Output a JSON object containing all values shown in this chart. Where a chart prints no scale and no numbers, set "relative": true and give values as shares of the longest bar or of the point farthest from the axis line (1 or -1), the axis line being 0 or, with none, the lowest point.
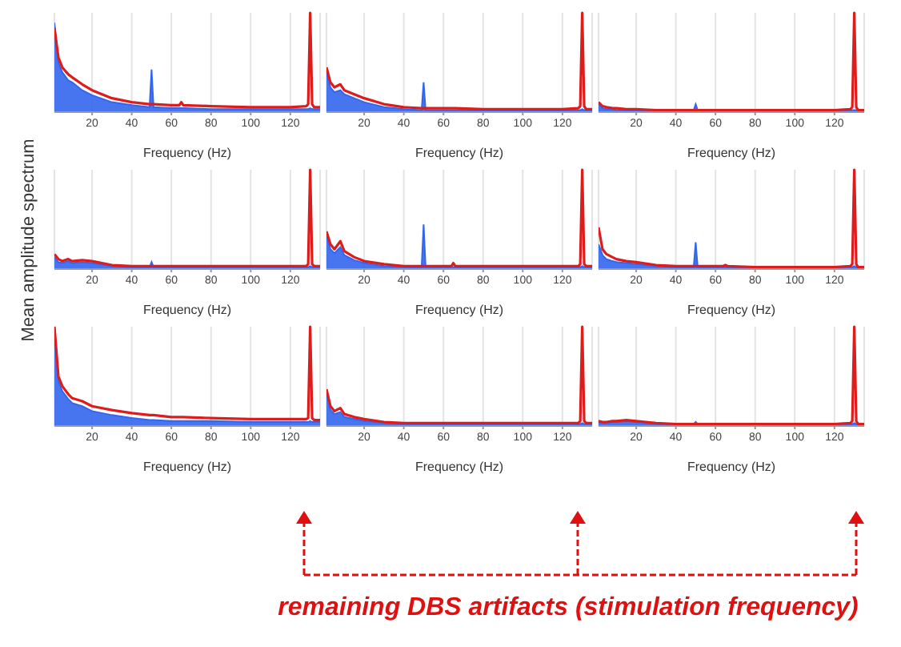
{
  "chart_data": [
    {
      "type": "line",
      "relative": true,
      "xlabel": "Frequency (Hz)",
      "xlim": [
        1,
        135
      ],
      "xticks": [
        20,
        40,
        60,
        80,
        100,
        120
      ],
      "grid": "x",
      "marker": "none",
      "x": [
        1,
        3,
        5,
        8,
        10,
        15,
        20,
        30,
        40,
        49,
        50,
        51,
        60,
        64,
        65,
        66,
        80,
        100,
        120,
        128,
        129,
        130,
        131,
        132,
        135
      ],
      "series": [
        {
          "type": "area",
          "color": "#3366ee",
          "values": [
            0.9,
            0.5,
            0.4,
            0.32,
            0.3,
            0.22,
            0.17,
            0.1,
            0.07,
            0.05,
            0.43,
            0.05,
            0.04,
            0.04,
            0.04,
            0.04,
            0.03,
            0.03,
            0.03,
            0.03,
            0.03,
            0.04,
            0.03,
            0.03,
            0.03
          ]
        },
        {
          "type": "line",
          "color": "#dd1c1c",
          "values": [
            0.85,
            0.55,
            0.45,
            0.38,
            0.35,
            0.28,
            0.22,
            0.14,
            0.1,
            0.08,
            0.08,
            0.08,
            0.07,
            0.07,
            0.1,
            0.07,
            0.06,
            0.05,
            0.05,
            0.06,
            0.08,
            1,
            0.08,
            0.05,
            0.05
          ]
        }
      ]
    },
    {
      "type": "line",
      "relative": true,
      "xlabel": "Frequency (Hz)",
      "xlim": [
        1,
        135
      ],
      "xticks": [
        20,
        40,
        60,
        80,
        100,
        120
      ],
      "grid": "x",
      "marker": "none",
      "x": [
        1,
        3,
        5,
        8,
        10,
        15,
        20,
        30,
        40,
        49,
        50,
        51,
        60,
        64,
        65,
        66,
        80,
        100,
        120,
        128,
        129,
        130,
        131,
        132,
        135
      ],
      "series": [
        {
          "type": "area",
          "color": "#3366ee",
          "values": [
            0.4,
            0.25,
            0.2,
            0.22,
            0.18,
            0.14,
            0.1,
            0.05,
            0.03,
            0.02,
            0.3,
            0.02,
            0.02,
            0.02,
            0.02,
            0.02,
            0.02,
            0.02,
            0.02,
            0.02,
            0.02,
            0.03,
            0.02,
            0.02,
            0.02
          ]
        },
        {
          "type": "line",
          "color": "#dd1c1c",
          "values": [
            0.45,
            0.3,
            0.25,
            0.28,
            0.22,
            0.18,
            0.14,
            0.08,
            0.05,
            0.04,
            0.04,
            0.04,
            0.04,
            0.04,
            0.04,
            0.04,
            0.03,
            0.03,
            0.03,
            0.04,
            0.06,
            1,
            0.06,
            0.03,
            0.03
          ]
        }
      ]
    },
    {
      "type": "line",
      "relative": true,
      "xlabel": "Frequency (Hz)",
      "xlim": [
        1,
        135
      ],
      "xticks": [
        20,
        40,
        60,
        80,
        100,
        120
      ],
      "grid": "x",
      "marker": "none",
      "x": [
        1,
        3,
        5,
        8,
        10,
        15,
        20,
        30,
        40,
        49,
        50,
        51,
        60,
        64,
        65,
        66,
        80,
        100,
        120,
        128,
        129,
        130,
        131,
        132,
        135
      ],
      "series": [
        {
          "type": "area",
          "color": "#3366ee",
          "values": [
            0.08,
            0.04,
            0.03,
            0.03,
            0.02,
            0.02,
            0.02,
            0.02,
            0.02,
            0.02,
            0.08,
            0.02,
            0.02,
            0.02,
            0.02,
            0.02,
            0.02,
            0.02,
            0.02,
            0.02,
            0.02,
            0.02,
            0.02,
            0.02,
            0.02
          ]
        },
        {
          "type": "line",
          "color": "#dd1c1c",
          "values": [
            0.1,
            0.06,
            0.05,
            0.04,
            0.04,
            0.03,
            0.03,
            0.02,
            0.02,
            0.02,
            0.02,
            0.02,
            0.02,
            0.02,
            0.02,
            0.02,
            0.02,
            0.02,
            0.02,
            0.03,
            0.05,
            1,
            0.05,
            0.02,
            0.02
          ]
        }
      ]
    },
    {
      "type": "line",
      "relative": true,
      "ylabel": "Mean amplitude spectrum",
      "xlabel": "Frequency (Hz)",
      "xlim": [
        1,
        135
      ],
      "xticks": [
        20,
        40,
        60,
        80,
        100,
        120
      ],
      "grid": "x",
      "marker": "none",
      "x": [
        1,
        3,
        5,
        8,
        10,
        15,
        20,
        30,
        40,
        49,
        50,
        51,
        60,
        64,
        65,
        66,
        80,
        100,
        120,
        128,
        129,
        130,
        131,
        132,
        135
      ],
      "series": [
        {
          "type": "area",
          "color": "#3366ee",
          "values": [
            0.12,
            0.07,
            0.06,
            0.08,
            0.06,
            0.07,
            0.06,
            0.03,
            0.02,
            0.02,
            0.07,
            0.02,
            0.02,
            0.02,
            0.02,
            0.02,
            0.02,
            0.02,
            0.02,
            0.02,
            0.02,
            0.03,
            0.02,
            0.02,
            0.02
          ]
        },
        {
          "type": "line",
          "color": "#dd1c1c",
          "values": [
            0.15,
            0.1,
            0.08,
            0.1,
            0.08,
            0.09,
            0.08,
            0.04,
            0.03,
            0.03,
            0.03,
            0.03,
            0.03,
            0.03,
            0.03,
            0.03,
            0.03,
            0.03,
            0.03,
            0.03,
            0.05,
            1,
            0.05,
            0.03,
            0.03
          ]
        }
      ]
    },
    {
      "type": "line",
      "relative": true,
      "xlabel": "Frequency (Hz)",
      "xlim": [
        1,
        135
      ],
      "xticks": [
        20,
        40,
        60,
        80,
        100,
        120
      ],
      "grid": "x",
      "marker": "none",
      "x": [
        1,
        3,
        5,
        8,
        10,
        15,
        20,
        30,
        40,
        49,
        50,
        51,
        60,
        64,
        65,
        66,
        80,
        100,
        120,
        128,
        129,
        130,
        131,
        132,
        135
      ],
      "series": [
        {
          "type": "area",
          "color": "#3366ee",
          "values": [
            0.33,
            0.2,
            0.16,
            0.22,
            0.14,
            0.09,
            0.06,
            0.03,
            0.02,
            0.02,
            0.45,
            0.02,
            0.02,
            0.02,
            0.02,
            0.02,
            0.02,
            0.02,
            0.02,
            0.02,
            0.02,
            0.03,
            0.02,
            0.02,
            0.02
          ]
        },
        {
          "type": "line",
          "color": "#dd1c1c",
          "values": [
            0.38,
            0.25,
            0.2,
            0.28,
            0.18,
            0.12,
            0.08,
            0.05,
            0.03,
            0.03,
            0.03,
            0.03,
            0.03,
            0.03,
            0.06,
            0.03,
            0.03,
            0.03,
            0.03,
            0.03,
            0.05,
            1,
            0.05,
            0.03,
            0.03
          ]
        }
      ]
    },
    {
      "type": "line",
      "relative": true,
      "xlabel": "Frequency (Hz)",
      "xlim": [
        1,
        135
      ],
      "xticks": [
        20,
        40,
        60,
        80,
        100,
        120
      ],
      "grid": "x",
      "marker": "none",
      "x": [
        1,
        3,
        5,
        8,
        10,
        15,
        20,
        30,
        40,
        49,
        50,
        51,
        60,
        64,
        65,
        66,
        80,
        100,
        120,
        128,
        129,
        130,
        131,
        132,
        135
      ],
      "series": [
        {
          "type": "area",
          "color": "#3366ee",
          "values": [
            0.25,
            0.14,
            0.1,
            0.08,
            0.07,
            0.06,
            0.05,
            0.03,
            0.02,
            0.02,
            0.27,
            0.02,
            0.02,
            0.02,
            0.02,
            0.02,
            0.02,
            0.02,
            0.02,
            0.02,
            0.02,
            0.03,
            0.02,
            0.02,
            0.02
          ]
        },
        {
          "type": "line",
          "color": "#dd1c1c",
          "values": [
            0.42,
            0.2,
            0.15,
            0.12,
            0.1,
            0.08,
            0.07,
            0.04,
            0.03,
            0.03,
            0.03,
            0.03,
            0.03,
            0.03,
            0.04,
            0.03,
            0.02,
            0.02,
            0.02,
            0.03,
            0.05,
            1,
            0.05,
            0.02,
            0.02
          ]
        }
      ]
    },
    {
      "type": "line",
      "relative": true,
      "xlabel": "Frequency (Hz)",
      "xlim": [
        1,
        135
      ],
      "xticks": [
        20,
        40,
        60,
        80,
        100,
        120
      ],
      "grid": "x",
      "marker": "none",
      "x": [
        1,
        3,
        5,
        8,
        10,
        15,
        20,
        30,
        40,
        49,
        50,
        51,
        60,
        64,
        65,
        66,
        80,
        100,
        120,
        128,
        129,
        130,
        131,
        132,
        135
      ],
      "series": [
        {
          "type": "area",
          "color": "#3366ee",
          "values": [
            0.95,
            0.45,
            0.35,
            0.27,
            0.23,
            0.2,
            0.15,
            0.11,
            0.08,
            0.06,
            0.06,
            0.06,
            0.05,
            0.05,
            0.05,
            0.05,
            0.05,
            0.04,
            0.04,
            0.04,
            0.04,
            0.05,
            0.04,
            0.04,
            0.04
          ]
        },
        {
          "type": "line",
          "color": "#dd1c1c",
          "values": [
            1,
            0.5,
            0.4,
            0.32,
            0.28,
            0.25,
            0.2,
            0.16,
            0.13,
            0.11,
            0.11,
            0.11,
            0.09,
            0.09,
            0.09,
            0.09,
            0.08,
            0.07,
            0.07,
            0.07,
            0.08,
            1,
            0.08,
            0.06,
            0.06
          ]
        }
      ]
    },
    {
      "type": "line",
      "relative": true,
      "xlabel": "Frequency (Hz)",
      "xlim": [
        1,
        135
      ],
      "xticks": [
        20,
        40,
        60,
        80,
        100,
        120
      ],
      "grid": "x",
      "marker": "none",
      "x": [
        1,
        3,
        5,
        8,
        10,
        15,
        20,
        30,
        40,
        49,
        50,
        51,
        60,
        64,
        65,
        66,
        80,
        100,
        120,
        128,
        129,
        130,
        131,
        132,
        135
      ],
      "series": [
        {
          "type": "area",
          "color": "#3366ee",
          "values": [
            0.33,
            0.16,
            0.12,
            0.14,
            0.09,
            0.07,
            0.05,
            0.03,
            0.02,
            0.02,
            0.02,
            0.02,
            0.02,
            0.02,
            0.02,
            0.02,
            0.02,
            0.02,
            0.02,
            0.02,
            0.02,
            0.03,
            0.02,
            0.02,
            0.02
          ]
        },
        {
          "type": "line",
          "color": "#dd1c1c",
          "values": [
            0.37,
            0.2,
            0.15,
            0.18,
            0.12,
            0.09,
            0.07,
            0.04,
            0.03,
            0.03,
            0.03,
            0.03,
            0.03,
            0.03,
            0.03,
            0.03,
            0.03,
            0.03,
            0.03,
            0.03,
            0.05,
            1,
            0.05,
            0.03,
            0.03
          ]
        }
      ]
    },
    {
      "type": "line",
      "relative": true,
      "xlabel": "Frequency (Hz)",
      "xlim": [
        1,
        135
      ],
      "xticks": [
        20,
        40,
        60,
        80,
        100,
        120
      ],
      "grid": "x",
      "marker": "none",
      "annotations": [
        "remaining DBS artifacts (stimulation frequency)"
      ],
      "x": [
        1,
        3,
        5,
        8,
        10,
        15,
        20,
        30,
        40,
        49,
        50,
        51,
        60,
        64,
        65,
        66,
        80,
        100,
        120,
        128,
        129,
        130,
        131,
        132,
        135
      ],
      "series": [
        {
          "type": "area",
          "color": "#3366ee",
          "values": [
            0.04,
            0.03,
            0.03,
            0.04,
            0.04,
            0.05,
            0.04,
            0.02,
            0.02,
            0.02,
            0.04,
            0.02,
            0.02,
            0.02,
            0.02,
            0.02,
            0.02,
            0.02,
            0.02,
            0.02,
            0.02,
            0.03,
            0.02,
            0.02,
            0.02
          ]
        },
        {
          "type": "line",
          "color": "#dd1c1c",
          "values": [
            0.05,
            0.04,
            0.04,
            0.05,
            0.05,
            0.06,
            0.05,
            0.03,
            0.02,
            0.02,
            0.02,
            0.02,
            0.02,
            0.02,
            0.02,
            0.02,
            0.02,
            0.02,
            0.02,
            0.03,
            0.05,
            1,
            0.05,
            0.02,
            0.02
          ]
        }
      ]
    }
  ]
}
